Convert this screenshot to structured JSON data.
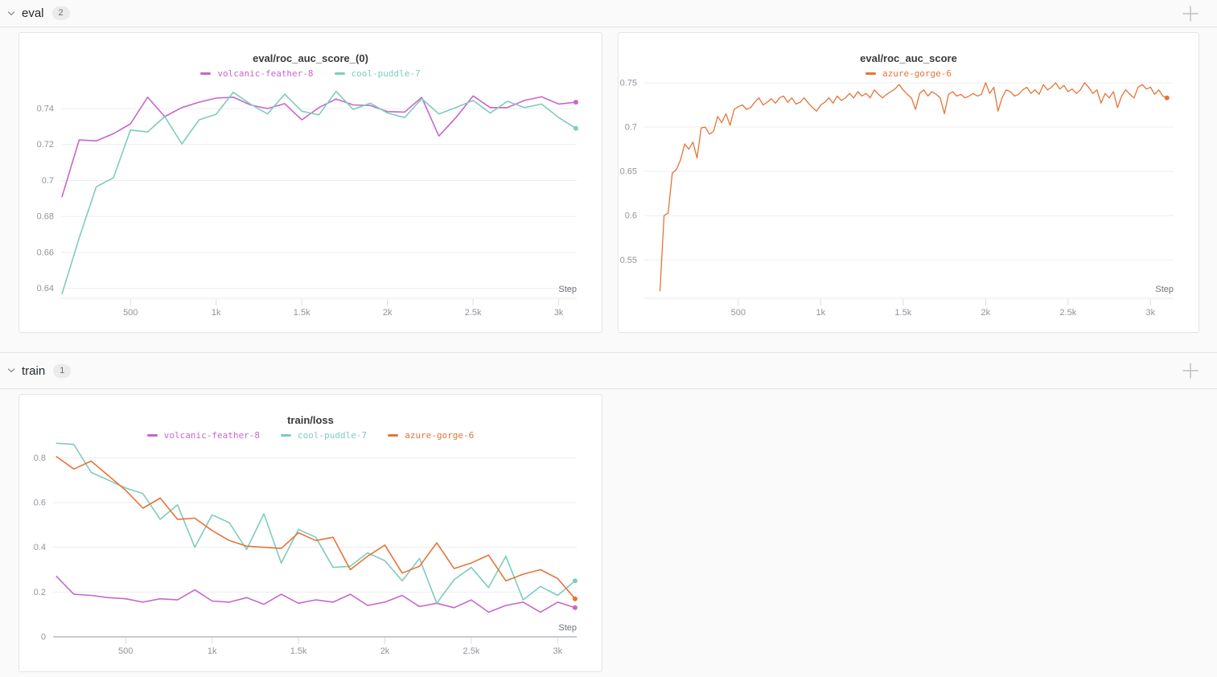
{
  "sections": [
    {
      "title": "eval",
      "count": "2"
    },
    {
      "title": "train",
      "count": "1"
    }
  ],
  "colors": {
    "page_bg": "#fafafa",
    "panel_bg": "#ffffff",
    "panel_border": "#e5e5e6",
    "grid": "#ededee",
    "zero_axis": "#c7cbd1",
    "tick_text": "#8f949c",
    "step_text": "#6e737a",
    "title_text": "#3a3a3c",
    "run_volcanic_feather_8": "#c767cb",
    "run_cool_puddle_7": "#7eccbe",
    "run_azure_gorge_6": "#e57439"
  },
  "chart_data": [
    {
      "type": "line",
      "title": "eval/roc_auc_score_(0)",
      "xlabel": "Step",
      "legend_position": "top",
      "grid": true,
      "xlim": [
        95,
        3105
      ],
      "ylim": [
        0.6345,
        0.7525
      ],
      "xticks": {
        "values": [
          500,
          1000,
          1500,
          2000,
          2500,
          3000
        ],
        "labels": [
          "500",
          "1k",
          "1.5k",
          "2k",
          "2.5k",
          "3k"
        ]
      },
      "yticks": {
        "values": [
          0.64,
          0.66,
          0.68,
          0.7,
          0.72,
          0.74
        ],
        "labels": [
          "0.64",
          "0.66",
          "0.68",
          "0.7",
          "0.72",
          "0.74"
        ]
      },
      "series": [
        {
          "name": "volcanic-feather-8",
          "color": "#c767cb",
          "end_dot": true,
          "x": [
            100,
            200,
            300,
            400,
            500,
            600,
            700,
            800,
            900,
            1000,
            1100,
            1200,
            1300,
            1400,
            1500,
            1600,
            1700,
            1800,
            1900,
            2000,
            2100,
            2200,
            2300,
            2400,
            2500,
            2600,
            2700,
            2800,
            2900,
            3000,
            3100
          ],
          "y": [
            0.691,
            0.7225,
            0.722,
            0.726,
            0.7315,
            0.7463,
            0.7355,
            0.7405,
            0.7435,
            0.7458,
            0.7463,
            0.742,
            0.74,
            0.7427,
            0.7337,
            0.7405,
            0.7453,
            0.742,
            0.7417,
            0.7383,
            0.738,
            0.7462,
            0.7247,
            0.735,
            0.747,
            0.7405,
            0.7405,
            0.7445,
            0.7465,
            0.7425,
            0.7435
          ]
        },
        {
          "name": "cool-puddle-7",
          "color": "#7eccbe",
          "end_dot": true,
          "x": [
            100,
            200,
            300,
            400,
            500,
            600,
            700,
            800,
            900,
            1000,
            1100,
            1200,
            1300,
            1400,
            1500,
            1600,
            1700,
            1800,
            1900,
            2000,
            2100,
            2200,
            2300,
            2400,
            2500,
            2600,
            2700,
            2800,
            2900,
            3000,
            3100
          ],
          "y": [
            0.637,
            0.668,
            0.6965,
            0.7015,
            0.728,
            0.727,
            0.7355,
            0.7203,
            0.7337,
            0.7368,
            0.749,
            0.7425,
            0.737,
            0.748,
            0.7385,
            0.7365,
            0.7495,
            0.7395,
            0.743,
            0.7375,
            0.735,
            0.7455,
            0.737,
            0.7405,
            0.7445,
            0.7375,
            0.744,
            0.7405,
            0.7425,
            0.735,
            0.729
          ]
        }
      ]
    },
    {
      "type": "line",
      "title": "eval/roc_auc_score",
      "xlabel": "Step",
      "legend_position": "top",
      "grid": true,
      "xlim": [
        -70,
        3140
      ],
      "ylim": [
        0.5067,
        0.7554
      ],
      "xticks": {
        "values": [
          500,
          1000,
          1500,
          2000,
          2500,
          3000
        ],
        "labels": [
          "500",
          "1k",
          "1.5k",
          "2k",
          "2.5k",
          "3k"
        ]
      },
      "yticks": {
        "values": [
          0.55,
          0.6,
          0.65,
          0.7,
          0.75
        ],
        "labels": [
          "0.55",
          "0.6",
          "0.65",
          "0.7",
          "0.75"
        ]
      },
      "series": [
        {
          "name": "azure-gorge-6",
          "color": "#e57439",
          "end_dot": true,
          "x": [
            25,
            50,
            75,
            100,
            125,
            150,
            175,
            200,
            225,
            250,
            275,
            300,
            325,
            350,
            375,
            400,
            425,
            450,
            475,
            500,
            525,
            550,
            575,
            600,
            625,
            650,
            675,
            700,
            725,
            750,
            775,
            800,
            825,
            850,
            875,
            900,
            925,
            950,
            975,
            1000,
            1025,
            1050,
            1075,
            1100,
            1125,
            1150,
            1175,
            1200,
            1225,
            1250,
            1275,
            1300,
            1325,
            1350,
            1375,
            1400,
            1425,
            1450,
            1475,
            1500,
            1525,
            1550,
            1575,
            1600,
            1625,
            1650,
            1675,
            1700,
            1725,
            1750,
            1775,
            1800,
            1825,
            1850,
            1875,
            1900,
            1925,
            1950,
            1975,
            2000,
            2025,
            2050,
            2075,
            2100,
            2125,
            2150,
            2175,
            2200,
            2225,
            2250,
            2275,
            2300,
            2325,
            2350,
            2375,
            2400,
            2425,
            2450,
            2475,
            2500,
            2525,
            2550,
            2575,
            2600,
            2625,
            2650,
            2675,
            2700,
            2725,
            2750,
            2775,
            2800,
            2825,
            2850,
            2875,
            2900,
            2925,
            2950,
            2975,
            3000,
            3025,
            3050,
            3075,
            3100
          ],
          "y": [
            0.515,
            0.6,
            0.603,
            0.648,
            0.652,
            0.663,
            0.681,
            0.675,
            0.683,
            0.665,
            0.699,
            0.7,
            0.692,
            0.695,
            0.712,
            0.705,
            0.715,
            0.702,
            0.72,
            0.723,
            0.725,
            0.72,
            0.722,
            0.728,
            0.733,
            0.725,
            0.728,
            0.732,
            0.727,
            0.733,
            0.735,
            0.728,
            0.733,
            0.726,
            0.728,
            0.733,
            0.727,
            0.722,
            0.718,
            0.725,
            0.728,
            0.733,
            0.727,
            0.735,
            0.73,
            0.733,
            0.738,
            0.733,
            0.74,
            0.735,
            0.738,
            0.733,
            0.742,
            0.737,
            0.733,
            0.737,
            0.74,
            0.743,
            0.748,
            0.742,
            0.737,
            0.733,
            0.72,
            0.738,
            0.742,
            0.735,
            0.74,
            0.737,
            0.733,
            0.715,
            0.737,
            0.74,
            0.735,
            0.737,
            0.733,
            0.735,
            0.738,
            0.735,
            0.737,
            0.75,
            0.738,
            0.745,
            0.718,
            0.733,
            0.742,
            0.74,
            0.735,
            0.737,
            0.742,
            0.745,
            0.738,
            0.742,
            0.737,
            0.748,
            0.742,
            0.745,
            0.75,
            0.743,
            0.747,
            0.74,
            0.743,
            0.738,
            0.742,
            0.75,
            0.745,
            0.738,
            0.742,
            0.727,
            0.738,
            0.733,
            0.74,
            0.722,
            0.735,
            0.742,
            0.737,
            0.733,
            0.745,
            0.748,
            0.743,
            0.745,
            0.737,
            0.742,
            0.735,
            0.733
          ]
        }
      ]
    },
    {
      "type": "line",
      "title": "train/loss",
      "xlabel": "Step",
      "legend_position": "top",
      "grid": true,
      "xlim": [
        80,
        3110
      ],
      "ylim": [
        0,
        0.866
      ],
      "xticks": {
        "values": [
          500,
          1000,
          1500,
          2000,
          2500,
          3000
        ],
        "labels": [
          "500",
          "1k",
          "1.5k",
          "2k",
          "2.5k",
          "3k"
        ]
      },
      "yticks": {
        "values": [
          0,
          0.2,
          0.4,
          0.6,
          0.8
        ],
        "labels": [
          "0",
          "0.2",
          "0.4",
          "0.6",
          "0.8"
        ]
      },
      "series": [
        {
          "name": "volcanic-feather-8",
          "color": "#c767cb",
          "end_dot": true,
          "x": [
            100,
            200,
            300,
            400,
            500,
            600,
            700,
            800,
            900,
            1000,
            1100,
            1200,
            1300,
            1400,
            1500,
            1600,
            1700,
            1800,
            1900,
            2000,
            2100,
            2200,
            2300,
            2400,
            2500,
            2600,
            2700,
            2800,
            2900,
            3000,
            3100
          ],
          "y": [
            0.27,
            0.19,
            0.185,
            0.175,
            0.17,
            0.155,
            0.17,
            0.165,
            0.21,
            0.16,
            0.155,
            0.175,
            0.145,
            0.19,
            0.15,
            0.165,
            0.155,
            0.19,
            0.14,
            0.155,
            0.185,
            0.135,
            0.15,
            0.13,
            0.165,
            0.11,
            0.14,
            0.155,
            0.11,
            0.155,
            0.13
          ]
        },
        {
          "name": "cool-puddle-7",
          "color": "#7eccbe",
          "end_dot": true,
          "x": [
            100,
            200,
            300,
            400,
            500,
            600,
            700,
            800,
            900,
            1000,
            1100,
            1200,
            1300,
            1400,
            1500,
            1600,
            1700,
            1800,
            1900,
            2000,
            2100,
            2200,
            2300,
            2400,
            2500,
            2600,
            2700,
            2800,
            2900,
            3000,
            3100
          ],
          "y": [
            0.865,
            0.86,
            0.735,
            0.7,
            0.665,
            0.64,
            0.525,
            0.59,
            0.4,
            0.545,
            0.51,
            0.39,
            0.55,
            0.33,
            0.48,
            0.445,
            0.31,
            0.315,
            0.375,
            0.34,
            0.25,
            0.35,
            0.15,
            0.255,
            0.31,
            0.22,
            0.36,
            0.165,
            0.225,
            0.185,
            0.25
          ]
        },
        {
          "name": "azure-gorge-6",
          "color": "#e57439",
          "end_dot": true,
          "x": [
            100,
            200,
            300,
            400,
            500,
            600,
            700,
            800,
            900,
            1000,
            1100,
            1200,
            1300,
            1400,
            1500,
            1600,
            1700,
            1800,
            1900,
            2000,
            2100,
            2200,
            2300,
            2400,
            2500,
            2600,
            2700,
            2800,
            2900,
            3000,
            3100
          ],
          "y": [
            0.805,
            0.75,
            0.785,
            0.72,
            0.655,
            0.575,
            0.62,
            0.525,
            0.53,
            0.475,
            0.43,
            0.405,
            0.4,
            0.395,
            0.465,
            0.43,
            0.445,
            0.3,
            0.36,
            0.41,
            0.285,
            0.315,
            0.42,
            0.305,
            0.33,
            0.365,
            0.25,
            0.28,
            0.3,
            0.26,
            0.17
          ]
        }
      ]
    }
  ]
}
